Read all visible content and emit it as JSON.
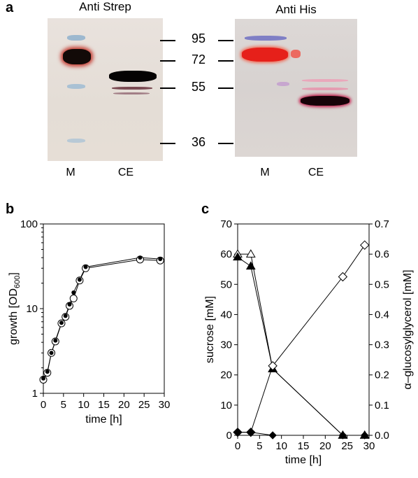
{
  "panel_a": {
    "letter": "a",
    "blots": [
      {
        "title": "Anti Strep",
        "lanes": [
          "M",
          "CE"
        ]
      },
      {
        "title": "Anti His",
        "lanes": [
          "M",
          "CE"
        ]
      }
    ],
    "mw_markers": [
      "95",
      "72",
      "55",
      "36"
    ]
  },
  "chart_data": [
    {
      "panel": "b",
      "type": "line",
      "xlabel": "time [h]",
      "ylabel": "growth [OD600]",
      "yscale": "log",
      "xlim": [
        0,
        30
      ],
      "ylim": [
        1,
        100
      ],
      "xticks": [
        0,
        5,
        10,
        15,
        20,
        25,
        30
      ],
      "yticks": [
        1,
        10,
        100
      ],
      "grid": false,
      "series": [
        {
          "marker": "open-circle",
          "x": [
            0,
            1,
            2,
            3,
            4.5,
            5.5,
            6.5,
            7.5,
            9,
            10.5,
            24,
            29
          ],
          "y": [
            1.45,
            1.75,
            3.0,
            4.1,
            6.7,
            8.0,
            10.8,
            13.2,
            21.5,
            30.0,
            38.0,
            37.0
          ]
        },
        {
          "marker": "filled-circle",
          "x": [
            0,
            1,
            2,
            3,
            4.5,
            5.5,
            6.5,
            7.5,
            9,
            10.5,
            24,
            29
          ],
          "y": [
            1.5,
            1.8,
            3.0,
            4.2,
            6.8,
            8.2,
            11.2,
            15.5,
            22.0,
            31.0,
            40.0,
            38.5
          ]
        }
      ]
    },
    {
      "panel": "c",
      "type": "line",
      "xlabel": "time [h]",
      "ylabel_left": "sucrose [mM]",
      "ylabel_right": "α–glucosylglycerol [mM]",
      "xlim": [
        0,
        30
      ],
      "ylim_left": [
        0,
        70
      ],
      "ylim_right": [
        0,
        0.7
      ],
      "xticks": [
        0,
        5,
        10,
        15,
        20,
        25,
        30
      ],
      "yticks_left": [
        0,
        10,
        20,
        30,
        40,
        50,
        60,
        70
      ],
      "yticks_right": [
        "0.0",
        "0.1",
        "0.2",
        "0.3",
        "0.4",
        "0.5",
        "0.6",
        "0.7"
      ],
      "grid": false,
      "series": [
        {
          "marker": "open-triangle",
          "axis": "left",
          "x": [
            0,
            3,
            8,
            24,
            29
          ],
          "y": [
            60,
            60,
            22,
            0,
            0
          ]
        },
        {
          "marker": "filled-triangle",
          "axis": "left",
          "x": [
            0,
            3,
            8,
            24,
            29
          ],
          "y": [
            59,
            56,
            22,
            0,
            0
          ]
        },
        {
          "marker": "open-diamond",
          "axis": "right",
          "x": [
            0,
            3,
            8,
            24,
            29
          ],
          "y": [
            0.01,
            0.01,
            0.23,
            0.525,
            0.63
          ]
        },
        {
          "marker": "filled-diamond",
          "axis": "right",
          "x": [
            0,
            3,
            8,
            24,
            29
          ],
          "y": [
            0.01,
            0.01,
            0.0,
            0.0,
            0.0
          ]
        }
      ]
    }
  ],
  "panel_b_letter": "b",
  "panel_c_letter": "c"
}
